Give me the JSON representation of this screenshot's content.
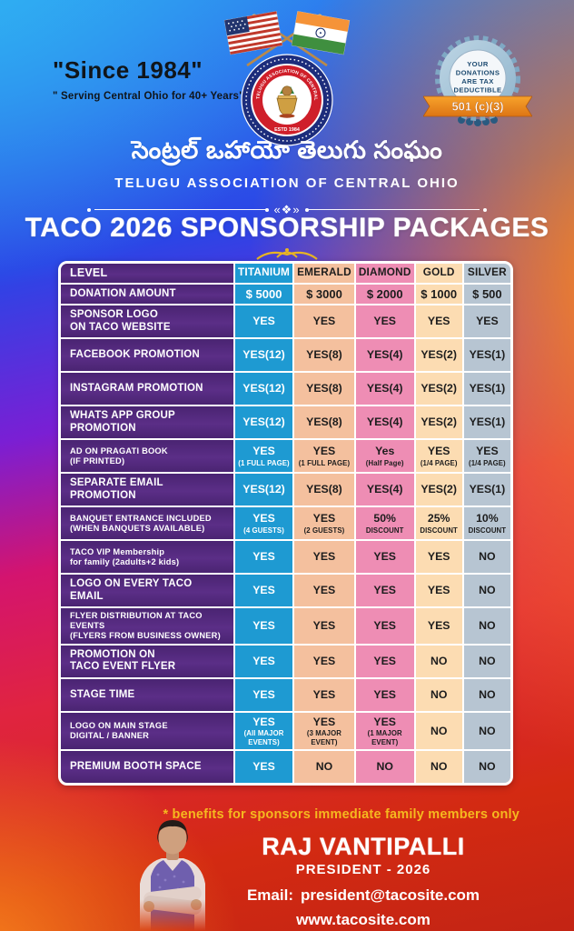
{
  "header": {
    "since": "\"Since 1984\"",
    "serving": "\" Serving Central Ohio for 40+ Years\"",
    "org_telugu": "సెంట్రల్ ఒహాయో తెలుగు సంఘం",
    "org_english": "TELUGU ASSOCIATION OF CENTRAL OHIO",
    "divider_ornament": "«❖»",
    "logo": {
      "arc_top": "TELUGU ASSOCIATION OF CENTRAL OHIO",
      "arc_bottom": "ESTD 1984",
      "ring_top_telugu": "సెంట్రల్ ఒహాయో తెలుగు సంఘం",
      "ring_bottom_telugu": "భాషా సంస్కృతి సంగమం"
    },
    "badge": {
      "line1": "YOUR",
      "line2": "DONATIONS",
      "line3": "ARE TAX",
      "line4": "DEDUCTIBLE",
      "ribbon": "501 (c)(3)"
    }
  },
  "title": "TACO 2026 SPONSORSHIP PACKAGES",
  "table": {
    "header": {
      "label": "LEVEL",
      "columns": [
        "TITANIUM",
        "EMERALD",
        "DIAMOND",
        "GOLD",
        "SILVER"
      ]
    },
    "column_colors": [
      {
        "name": "titanium",
        "bg": "#1e9ad2",
        "fg": "#ffffff"
      },
      {
        "name": "emerald",
        "bg": "#f4c09e",
        "fg": "#1d1d1d"
      },
      {
        "name": "diamond",
        "bg": "#ee8db4",
        "fg": "#1d1d1d"
      },
      {
        "name": "gold",
        "bg": "#fcdcb2",
        "fg": "#1d1d1d"
      },
      {
        "name": "silver",
        "bg": "#b7c5d2",
        "fg": "#1d1d1d"
      }
    ],
    "rows": [
      {
        "label": "DONATION AMOUNT",
        "values": [
          "$ 5000",
          "$ 3000",
          "$ 2000",
          "$ 1000",
          "$ 500"
        ]
      },
      {
        "label": "SPONSOR LOGO\nON TACO WEBSITE",
        "values": [
          "YES",
          "YES",
          "YES",
          "YES",
          "YES"
        ]
      },
      {
        "label": "FACEBOOK PROMOTION",
        "values": [
          "YES(12)",
          "YES(8)",
          "YES(4)",
          "YES(2)",
          "YES(1)"
        ]
      },
      {
        "label": "INSTAGRAM PROMOTION",
        "values": [
          "YES(12)",
          "YES(8)",
          "YES(4)",
          "YES(2)",
          "YES(1)"
        ]
      },
      {
        "label": "WHATS APP GROUP PROMOTION",
        "values": [
          "YES(12)",
          "YES(8)",
          "YES(4)",
          "YES(2)",
          "YES(1)"
        ]
      },
      {
        "label": "AD ON PRAGATI BOOK\n(IF PRINTED)",
        "values": [
          "YES\n(1 FULL PAGE)",
          "YES\n(1 FULL PAGE)",
          "Yes\n(Half Page)",
          "YES\n(1/4 PAGE)",
          "YES\n(1/4 PAGE)"
        ]
      },
      {
        "label": "SEPARATE EMAIL PROMOTION",
        "values": [
          "YES(12)",
          "YES(8)",
          "YES(4)",
          "YES(2)",
          "YES(1)"
        ]
      },
      {
        "label": "BANQUET ENTRANCE INCLUDED\n(WHEN BANQUETS AVAILABLE)",
        "values": [
          "YES\n(4 GUESTS)",
          "YES\n(2 GUESTS)",
          "50%\nDISCOUNT",
          "25%\nDISCOUNT",
          "10%\nDISCOUNT"
        ]
      },
      {
        "label": "TACO VIP Membership\nfor family (2adults+2 kids)",
        "values": [
          "YES",
          "YES",
          "YES",
          "YES",
          "NO"
        ]
      },
      {
        "label": "LOGO ON EVERY TACO EMAIL",
        "values": [
          "YES",
          "YES",
          "YES",
          "YES",
          "NO"
        ]
      },
      {
        "label": "FLYER DISTRIBUTION AT TACO EVENTS\n(FLYERS FROM BUSINESS OWNER)",
        "values": [
          "YES",
          "YES",
          "YES",
          "YES",
          "NO"
        ]
      },
      {
        "label": "PROMOTION ON\nTACO EVENT FLYER",
        "values": [
          "YES",
          "YES",
          "YES",
          "NO",
          "NO"
        ]
      },
      {
        "label": "STAGE TIME",
        "values": [
          "YES",
          "YES",
          "YES",
          "NO",
          "NO"
        ]
      },
      {
        "label": "LOGO ON MAIN STAGE\nDIGITAL / BANNER",
        "values": [
          "YES\n(All MAJOR EVENTS)",
          "YES\n(3 MAJOR EVENT)",
          "YES\n(1 MAJOR EVENT)",
          "NO",
          "NO"
        ]
      },
      {
        "label": "PREMIUM BOOTH SPACE",
        "values": [
          "YES",
          "NO",
          "NO",
          "NO",
          "NO"
        ]
      }
    ]
  },
  "footnote": "* benefits for sponsors immediate family members only",
  "footer": {
    "name": "RAJ VANTIPALLI",
    "role": "PRESIDENT - 2026",
    "email_label": "Email:",
    "email_value": "president@tacosite.com",
    "website": "www.tacosite.com"
  },
  "colors": {
    "vars": {
      "bg-cyan": "#2fb3f2",
      "bg-blue": "#2e8ef0",
      "bg-purple": "#7a1fd4",
      "bg-magenta": "#d4146e",
      "bg-red": "#d32a12",
      "bg-orange": "#ff8c12",
      "title": "#ffffff",
      "footnote": "#f5b91f",
      "label-bg": "#5b2e87",
      "label-bg2": "#4a2472",
      "frame": "#ffffff"
    }
  }
}
